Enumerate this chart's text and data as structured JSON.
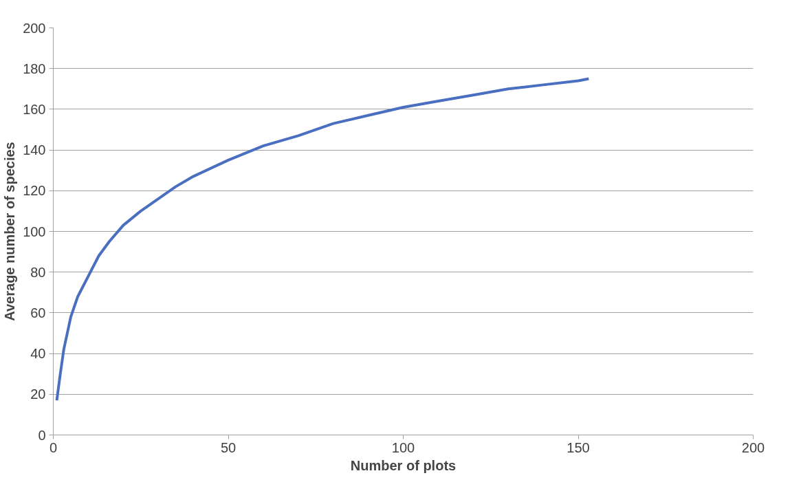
{
  "chart_data": {
    "type": "line",
    "xlabel": "Number of plots",
    "ylabel": "Average number of species",
    "x": [
      1,
      2,
      3,
      5,
      7,
      10,
      13,
      16,
      20,
      25,
      30,
      35,
      40,
      50,
      60,
      70,
      80,
      90,
      100,
      110,
      120,
      130,
      140,
      150,
      153
    ],
    "series": [
      {
        "color": "#4a6fc0",
        "values": [
          17,
          30,
          42,
          58,
          68,
          78,
          88,
          95,
          103,
          110,
          116,
          122,
          127,
          135,
          142,
          147,
          153,
          157,
          161,
          164,
          167,
          170,
          172,
          174,
          175
        ]
      }
    ],
    "xlim": [
      0,
      200
    ],
    "xticks": [
      0,
      50,
      100,
      150,
      200
    ],
    "ylim": [
      0,
      200
    ],
    "yticks": [
      0,
      20,
      40,
      60,
      80,
      100,
      120,
      140,
      160,
      180,
      200
    ],
    "grid": "y",
    "marker": "none",
    "line_style": "solid"
  }
}
